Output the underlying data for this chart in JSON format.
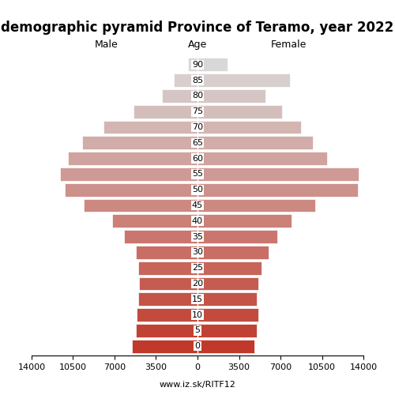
{
  "title": "demographic pyramid Province of Teramo, year 2022",
  "xlabel_left": "Male",
  "xlabel_right": "Female",
  "xlabel_center": "Age",
  "watermark": "www.iz.sk/RITF12",
  "age_groups": [
    0,
    5,
    10,
    15,
    20,
    25,
    30,
    35,
    40,
    45,
    50,
    55,
    60,
    65,
    70,
    75,
    80,
    85,
    90
  ],
  "male": [
    5500,
    5200,
    5100,
    5000,
    4900,
    5000,
    5200,
    6200,
    7200,
    9600,
    11200,
    11600,
    10900,
    9700,
    7900,
    5400,
    3000,
    2000,
    800
  ],
  "female": [
    4800,
    5000,
    5100,
    5000,
    5100,
    5400,
    6000,
    6700,
    7900,
    9900,
    13500,
    13600,
    10900,
    9700,
    8700,
    7100,
    5700,
    7800,
    2500
  ],
  "xlim": 14000,
  "bar_height": 0.85,
  "bg_color": "#ffffff",
  "title_fontsize": 12,
  "label_fontsize": 9,
  "tick_fontsize": 8,
  "xticks": [
    0,
    3500,
    7000,
    10500,
    14000
  ]
}
